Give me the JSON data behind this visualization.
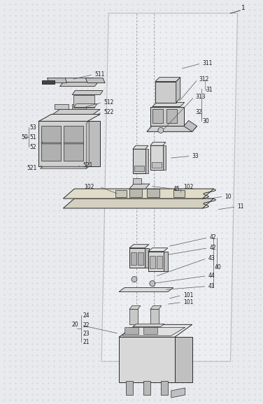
{
  "bg_color": "#e8eaed",
  "fig_width": 3.76,
  "fig_height": 5.78,
  "dpi": 100,
  "line_color": "#2a2a2a",
  "label_color": "#1a1a1a",
  "fs": 5.5,
  "fs_large": 6.5
}
